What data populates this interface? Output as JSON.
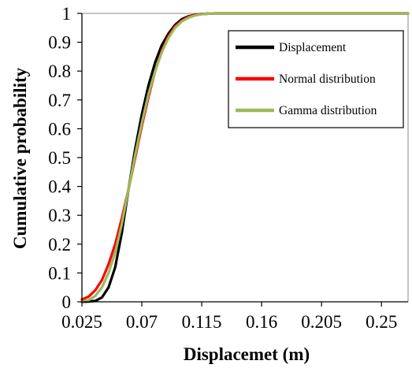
{
  "chart_data": {
    "type": "line",
    "xlabel": "Displacemet (m)",
    "ylabel": "Cumulative probability",
    "xlim": [
      0.025,
      0.27
    ],
    "ylim": [
      0,
      1
    ],
    "x_ticks": [
      "0.025",
      "0.07",
      "0.115",
      "0.16",
      "0.205",
      "0.25"
    ],
    "y_ticks": [
      "0",
      "0.1",
      "0.2",
      "0.3",
      "0.4",
      "0.5",
      "0.6",
      "0.7",
      "0.8",
      "0.9",
      "1"
    ],
    "grid": false,
    "legend_position": "top-right",
    "series": [
      {
        "name": "Displacement",
        "color": "#000000",
        "x": [
          0.025,
          0.03,
          0.035,
          0.04,
          0.045,
          0.05,
          0.055,
          0.06,
          0.065,
          0.07,
          0.075,
          0.08,
          0.085,
          0.09,
          0.095,
          0.1,
          0.105,
          0.11,
          0.115,
          0.12,
          0.125,
          0.13,
          0.14,
          0.15,
          0.16,
          0.205,
          0.25,
          0.27
        ],
        "y": [
          0.0,
          0.001,
          0.003,
          0.015,
          0.05,
          0.12,
          0.24,
          0.39,
          0.53,
          0.65,
          0.75,
          0.83,
          0.89,
          0.93,
          0.96,
          0.98,
          0.99,
          0.995,
          0.998,
          0.999,
          1.0,
          1.0,
          1.0,
          1.0,
          1.0,
          1.0,
          1.0,
          1.0
        ]
      },
      {
        "name": "Normal distribution",
        "color": "#ff0000",
        "x": [
          0.025,
          0.03,
          0.035,
          0.04,
          0.045,
          0.05,
          0.055,
          0.06,
          0.065,
          0.07,
          0.075,
          0.08,
          0.085,
          0.09,
          0.095,
          0.1,
          0.105,
          0.11,
          0.115,
          0.12,
          0.125,
          0.13,
          0.14,
          0.15,
          0.16,
          0.205,
          0.25,
          0.27
        ],
        "y": [
          0.008,
          0.018,
          0.04,
          0.075,
          0.13,
          0.2,
          0.29,
          0.39,
          0.5,
          0.61,
          0.71,
          0.8,
          0.87,
          0.92,
          0.955,
          0.975,
          0.988,
          0.995,
          0.998,
          0.999,
          1.0,
          1.0,
          1.0,
          1.0,
          1.0,
          1.0,
          1.0,
          1.0
        ]
      },
      {
        "name": "Gamma distribution",
        "color": "#9bbb59",
        "x": [
          0.025,
          0.03,
          0.035,
          0.04,
          0.045,
          0.05,
          0.055,
          0.06,
          0.065,
          0.07,
          0.075,
          0.08,
          0.085,
          0.09,
          0.095,
          0.1,
          0.105,
          0.11,
          0.115,
          0.12,
          0.125,
          0.13,
          0.14,
          0.15,
          0.16,
          0.205,
          0.25,
          0.27
        ],
        "y": [
          0.001,
          0.006,
          0.02,
          0.05,
          0.1,
          0.17,
          0.27,
          0.39,
          0.51,
          0.62,
          0.72,
          0.8,
          0.865,
          0.915,
          0.95,
          0.972,
          0.985,
          0.993,
          0.997,
          0.999,
          1.0,
          1.0,
          1.0,
          1.0,
          1.0,
          1.0,
          1.0,
          1.0
        ]
      }
    ]
  }
}
